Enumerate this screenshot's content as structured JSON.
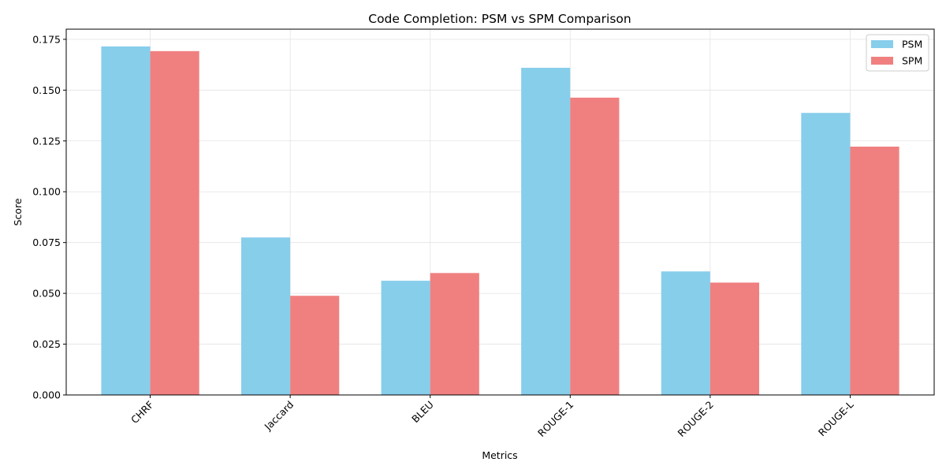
{
  "chart_data": {
    "type": "bar",
    "title": "Code Completion: PSM vs SPM Comparison",
    "xlabel": "Metrics",
    "ylabel": "Score",
    "categories": [
      "CHRF",
      "Jaccard",
      "BLEU",
      "ROUGE-1",
      "ROUGE-2",
      "ROUGE-L"
    ],
    "series": [
      {
        "name": "PSM",
        "color": "#87CEEB",
        "values": [
          0.1715,
          0.0775,
          0.0562,
          0.161,
          0.0608,
          0.1388
        ]
      },
      {
        "name": "SPM",
        "color": "#F08080",
        "values": [
          0.1692,
          0.0488,
          0.06,
          0.1463,
          0.0553,
          0.1222
        ]
      }
    ],
    "ylim": [
      0,
      0.18
    ],
    "yticks": [
      "0.000",
      "0.025",
      "0.050",
      "0.075",
      "0.100",
      "0.125",
      "0.150",
      "0.175"
    ],
    "grid": true,
    "legend_position": "top-right",
    "xtick_rotation": 45
  }
}
